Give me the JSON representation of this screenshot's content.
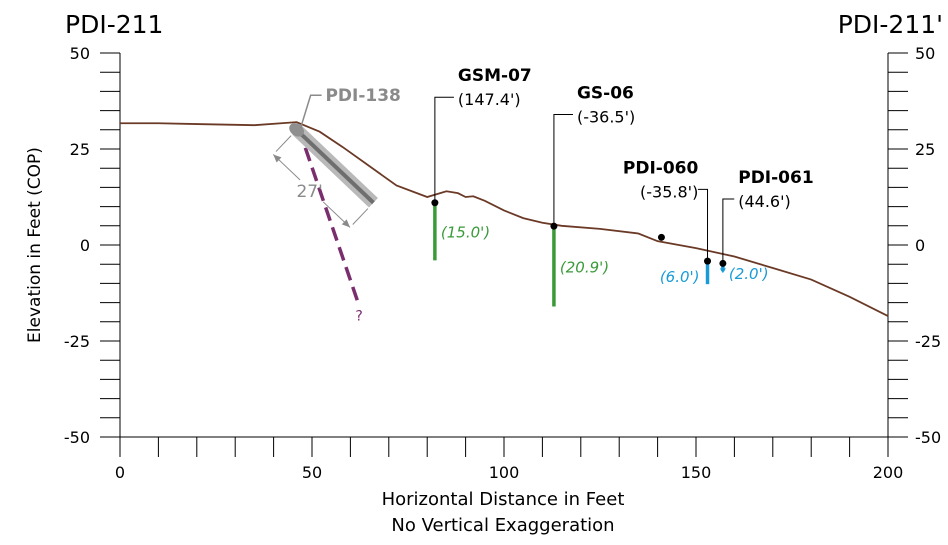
{
  "chart_data": {
    "type": "line",
    "section_start_label": "PDI-211",
    "section_end_label": "PDI-211'",
    "xlabel": "Horizontal Distance in Feet",
    "xlabel_note": "No Vertical Exaggeration",
    "ylabel": "Elevation in Feet (COP)",
    "xlim": [
      0,
      200
    ],
    "ylim": [
      -50,
      50
    ],
    "x_ticks": [
      0,
      50,
      100,
      150,
      200
    ],
    "y_ticks": [
      50,
      25,
      0,
      -25,
      -50
    ],
    "x_tick_labels": [
      "0",
      "50",
      "100",
      "150",
      "200"
    ],
    "y_tick_labels": [
      "50",
      "25",
      "0",
      "-25",
      "-50"
    ],
    "grid": false,
    "ground_surface": {
      "color": "#6b3a26",
      "x": [
        0,
        10,
        20,
        35,
        42,
        46,
        52,
        58,
        65,
        72,
        80,
        85,
        88,
        90,
        92,
        95,
        100,
        105,
        110,
        115,
        125,
        135,
        140,
        150,
        160,
        170,
        180,
        190,
        200
      ],
      "y": [
        31.7,
        31.7,
        31.5,
        31.2,
        31.7,
        32.0,
        29.5,
        25.5,
        20.5,
        15.5,
        12.5,
        14.0,
        13.5,
        12.5,
        12.7,
        11.5,
        9.0,
        7.0,
        5.8,
        5.0,
        4.2,
        3.0,
        1.0,
        -0.8,
        -3.0,
        -6.0,
        -9.0,
        -13.5,
        -18.5
      ]
    },
    "angled_boring": {
      "name": "PDI-138",
      "color": "#8a8a8a",
      "x": [
        46,
        66
      ],
      "y": [
        30,
        11
      ],
      "angle_label": "27'"
    },
    "projected_line": {
      "color": "#7a2e6e",
      "label": "?",
      "x": [
        46.5,
        62
      ],
      "y": [
        30.5,
        -15
      ]
    },
    "borings": [
      {
        "name": "GSM-07",
        "offset": "(147.4')",
        "x": 82,
        "top": 11,
        "bottom": -4,
        "depth_label": "(15.0')",
        "color": "#3a9a3a"
      },
      {
        "name": "GS-06",
        "offset": "(-36.5')",
        "x": 113,
        "top": 4.9,
        "bottom": -16,
        "depth_label": "(20.9')",
        "color": "#3a9a3a"
      },
      {
        "name": "PDI-060",
        "offset": "(-35.8')",
        "x": 153,
        "top": -4.2,
        "bottom": -10.2,
        "depth_label": "(6.0')",
        "color": "#1a9bd6"
      },
      {
        "name": "PDI-061",
        "offset": "(44.6')",
        "x": 157,
        "top": -4.8,
        "bottom": -6.8,
        "depth_label": "(2.0')",
        "color": "#1a9bd6"
      }
    ],
    "extra_point": {
      "x": 141,
      "y": 2
    }
  }
}
